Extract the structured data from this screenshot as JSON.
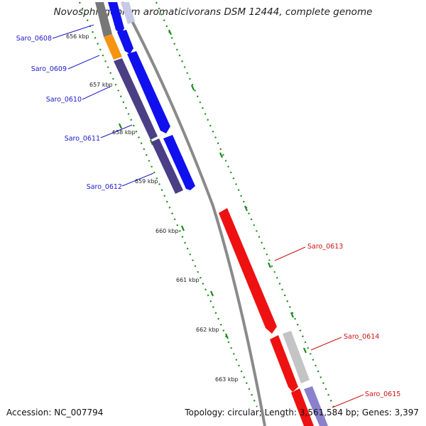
{
  "title": "Novosphingobium aromaticivorans DSM 12444, complete genome",
  "footer": {
    "accession": "Accession: NC_007794",
    "summary": "Topology: circular; Length: 3,561,584 bp; Genes: 3,397"
  },
  "ticks": [
    "656 kbp",
    "657 kbp",
    "658 kbp",
    "659 kbp",
    "660 kbp",
    "661 kbp",
    "662 kbp",
    "663 kbp"
  ],
  "genes": [
    "Saro_0608",
    "Saro_0609",
    "Saro_0610",
    "Saro_0611",
    "Saro_0612",
    "Saro_0613",
    "Saro_0614",
    "Saro_0615"
  ],
  "colors": {
    "forward_cds": "#1010ee",
    "reverse_cds": "#ee1111",
    "cog_purple": "#4a3f85",
    "cog_orange": "#f59412",
    "backbone": "#888888",
    "gc_dots": "#1a8a1a",
    "label_forward": "#1a1acc",
    "label_reverse": "#cc1111"
  }
}
